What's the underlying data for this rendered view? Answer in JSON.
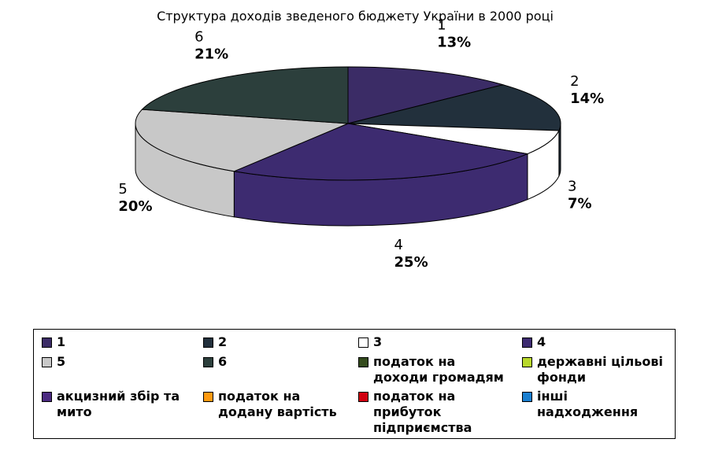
{
  "chart_data": {
    "type": "pie3d",
    "title": "Структура доходів зведеного бюджету України в 2000 році",
    "categories": [
      "1",
      "2",
      "3",
      "4",
      "5",
      "6"
    ],
    "values": [
      13,
      14,
      7,
      25,
      20,
      21
    ],
    "value_labels": [
      "13%",
      "14%",
      "7%",
      "25%",
      "20%",
      "21%"
    ],
    "colors": [
      "#3b2c66",
      "#22303c",
      "#ffffff",
      "#3d2b70",
      "#c8c8c8",
      "#2c3f3c"
    ],
    "legend": [
      {
        "name": "податок на доходи громадям",
        "color": "#334a1c"
      },
      {
        "name": "державні цільові фонди",
        "color": "#b8d82c"
      },
      {
        "name": "акцизний збір та мито",
        "color": "#4b2a80"
      },
      {
        "name": "податок на додану вартість",
        "color": "#ff9a10"
      },
      {
        "name": "податок на прибуток підприємства",
        "color": "#d00010"
      },
      {
        "name": "інші надходження",
        "color": "#1a7fd0"
      }
    ]
  }
}
